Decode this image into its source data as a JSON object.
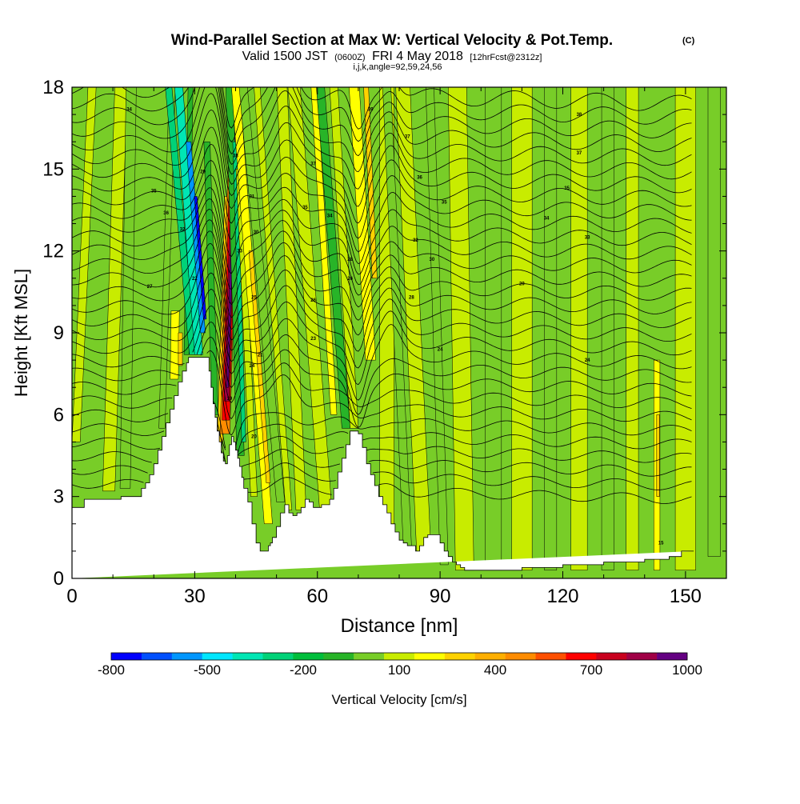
{
  "title": {
    "main": "Wind-Parallel Section at Max W: Vertical Velocity & Pot.Temp.",
    "main_unit": "(C)",
    "valid_prefix": "Valid 1500 JST",
    "valid_utc": "(0600Z)",
    "valid_date": "FRI 4 May 2018",
    "forecast": "[12hrFcst@2312z]",
    "indices": "i,j,k,angle=92,59,24,56"
  },
  "chart_data": {
    "type": "heatmap",
    "xlabel": "Distance [nm]",
    "ylabel": "Height [Kft MSL]",
    "xlim": [
      0,
      160
    ],
    "ylim": [
      0,
      18
    ],
    "x_ticks": [
      0,
      30,
      60,
      90,
      120,
      150
    ],
    "y_ticks": [
      0,
      3,
      6,
      9,
      12,
      15,
      18
    ],
    "grid": false,
    "fill_variable": "Vertical Velocity [cm/s]",
    "colorbar": {
      "label": "Vertical Velocity [cm/s]",
      "tick_labels": [
        "-800",
        "-500",
        "-200",
        "100",
        "400",
        "700",
        "1000"
      ],
      "tick_values": [
        -800,
        -500,
        -200,
        100,
        400,
        700,
        1000
      ],
      "min": -800,
      "max": 1000,
      "step": 100,
      "colors": [
        "#0000ff",
        "#0050ff",
        "#0096ff",
        "#00e6ff",
        "#00e6b4",
        "#00d278",
        "#00be3c",
        "#28b428",
        "#78cd28",
        "#c8ec00",
        "#ffff00",
        "#ffd200",
        "#ffaf00",
        "#ff8c00",
        "#ff5000",
        "#ff0000",
        "#c8001e",
        "#a00046",
        "#640082"
      ]
    },
    "background_color": "#78cd28",
    "terrain": {
      "x": [
        0,
        3,
        3,
        12,
        12,
        17,
        17,
        18,
        18,
        19,
        19,
        20,
        20,
        21,
        21,
        22,
        22,
        23,
        23,
        24,
        24,
        25,
        25,
        26,
        26,
        27,
        27,
        28,
        28,
        28.5,
        28.5,
        29,
        29,
        33.5,
        33.5,
        34,
        34,
        34.5,
        34.5,
        35,
        35,
        35.5,
        35.5,
        36,
        36,
        36.5,
        36.5,
        37,
        37,
        37.5,
        37.5,
        38,
        38,
        38.5,
        38.5,
        39,
        39,
        39.5,
        39.5,
        40,
        40,
        40.5,
        40.5,
        41,
        41,
        41.5,
        41.5,
        42,
        42,
        43,
        43,
        44,
        44,
        45,
        45,
        46,
        46,
        47,
        47,
        48,
        48,
        48.5,
        48.5,
        49,
        49,
        50,
        50,
        51,
        51,
        52,
        52,
        53,
        53,
        54,
        54,
        55,
        55,
        56,
        56,
        57,
        57,
        58,
        58,
        59,
        59,
        60,
        60,
        61,
        61,
        62,
        62,
        63,
        63,
        64,
        64,
        65,
        65,
        66,
        66,
        67,
        67,
        68,
        68,
        69,
        69,
        70,
        70,
        71,
        71,
        72,
        72,
        73,
        73,
        74,
        74,
        75,
        75,
        76,
        76,
        77,
        77,
        78,
        78,
        79,
        79,
        80,
        80,
        81,
        81,
        82,
        82,
        83,
        83,
        84,
        84,
        85,
        85,
        86,
        86,
        87,
        87,
        88,
        88,
        89,
        89,
        90,
        90,
        91,
        91,
        92,
        92,
        93,
        93,
        94,
        94,
        95,
        95,
        96,
        96,
        97,
        97,
        98,
        98,
        99,
        99,
        100,
        100,
        110,
        110,
        120,
        120,
        130,
        130,
        140,
        140,
        143,
        143,
        146,
        146,
        149,
        149,
        152,
        152,
        155,
        155,
        160,
        160
      ],
      "y": [
        2.6,
        2.6,
        2.9,
        2.9,
        3.0,
        3.0,
        3.3,
        3.3,
        3.5,
        3.5,
        3.8,
        3.8,
        4.2,
        4.2,
        4.7,
        4.7,
        5.2,
        5.2,
        5.7,
        5.7,
        6.2,
        6.2,
        6.7,
        6.7,
        7.2,
        7.2,
        7.6,
        7.6,
        7.9,
        7.9,
        8.1,
        8.1,
        8.1,
        8.1,
        7.6,
        7.6,
        7.0,
        7.0,
        6.4,
        6.4,
        5.9,
        5.9,
        5.4,
        5.4,
        5.0,
        5.0,
        4.6,
        4.6,
        4.3,
        4.3,
        4.2,
        4.2,
        4.5,
        4.5,
        4.9,
        4.9,
        5.2,
        5.2,
        5.0,
        5.0,
        4.7,
        4.7,
        4.4,
        4.4,
        4.1,
        4.1,
        3.7,
        3.7,
        3.3,
        3.3,
        2.8,
        2.8,
        2.0,
        2.0,
        1.3,
        1.3,
        1.0,
        1.0,
        1.0,
        1.0,
        1.2,
        1.2,
        1.3,
        1.3,
        1.5,
        1.5,
        1.9,
        1.9,
        2.4,
        2.4,
        2.7,
        2.7,
        2.4,
        2.4,
        2.3,
        2.3,
        2.4,
        2.4,
        2.6,
        2.6,
        2.9,
        2.9,
        2.8,
        2.8,
        2.6,
        2.6,
        2.6,
        2.6,
        2.7,
        2.7,
        2.7,
        2.7,
        2.9,
        2.9,
        3.3,
        3.3,
        3.9,
        3.9,
        4.4,
        4.4,
        4.9,
        4.9,
        5.4,
        5.4,
        5.4,
        5.4,
        5.3,
        5.3,
        4.8,
        4.8,
        4.2,
        4.2,
        3.8,
        3.8,
        3.4,
        3.4,
        3.0,
        3.0,
        2.7,
        2.7,
        2.4,
        2.4,
        2.0,
        2.0,
        1.7,
        1.7,
        1.4,
        1.4,
        1.3,
        1.3,
        1.2,
        1.2,
        1.2,
        1.2,
        1.0,
        1.0,
        1.2,
        1.2,
        1.5,
        1.5,
        1.6,
        1.6,
        1.6,
        1.6,
        1.6,
        1.6,
        1.3,
        1.3,
        1.0,
        1.0,
        0.8,
        0.8,
        0.6,
        0.6,
        0.5,
        0.5,
        0.4,
        0.4,
        0.3,
        0.3,
        0.3,
        0.3,
        0.3,
        0.3,
        0.3,
        0.3,
        0.3,
        0.3,
        0.4,
        0.4,
        0.5,
        0.5,
        0.6,
        0.6,
        0.7,
        0.7,
        0.7,
        0.7,
        0.8,
        0.8,
        1.0,
        1.0
      ]
    },
    "bands": [
      {
        "x": 1,
        "y1": 5.0,
        "y2": 18,
        "lean": 0.3,
        "w": 2.0,
        "value": 100
      },
      {
        "x": 9,
        "y1": 3.2,
        "y2": 18,
        "lean": 0.2,
        "w": 3.0,
        "value": 100
      },
      {
        "x": 13,
        "y1": 3.3,
        "y2": 18,
        "lean": 0.1,
        "w": 2.5,
        "value": 0
      },
      {
        "x": 22,
        "y1": 5.5,
        "y2": 18,
        "lean": 0.2,
        "w": 1.5,
        "value": 0
      },
      {
        "x": 25,
        "y1": 7.3,
        "y2": 9.8,
        "lean": 0.1,
        "w": 2.0,
        "value": 200
      },
      {
        "x": 26.5,
        "y1": 7.8,
        "y2": 9.0,
        "lean": 0.0,
        "w": 1.0,
        "value": 300
      },
      {
        "x": 28,
        "y1": 8.2,
        "y2": 18,
        "lean": 0.1,
        "w": 1.2,
        "value": -100
      },
      {
        "x": 29.5,
        "y1": 8.2,
        "y2": 18,
        "lean": -0.6,
        "w": 1.6,
        "value": -300
      },
      {
        "x": 31,
        "y1": 8.2,
        "y2": 18,
        "lean": -0.5,
        "w": 2.0,
        "value": -400
      },
      {
        "x": 32,
        "y1": 9.0,
        "y2": 16,
        "lean": -0.5,
        "w": 1.2,
        "value": -600
      },
      {
        "x": 32.5,
        "y1": 9.5,
        "y2": 14,
        "lean": -0.5,
        "w": 0.7,
        "value": -800
      },
      {
        "x": 35,
        "y1": 6.0,
        "y2": 16,
        "lean": -0.2,
        "w": 1.5,
        "value": -100
      },
      {
        "x": 36.2,
        "y1": 5.0,
        "y2": 14,
        "lean": 0.2,
        "w": 1.4,
        "value": 300
      },
      {
        "x": 37.4,
        "y1": 5.3,
        "y2": 18,
        "lean": 0.2,
        "w": 2.4,
        "value": 500
      },
      {
        "x": 37.6,
        "y1": 5.8,
        "y2": 18,
        "lean": 0.2,
        "w": 1.8,
        "value": 700
      },
      {
        "x": 37.8,
        "y1": 6.5,
        "y2": 18,
        "lean": 0.2,
        "w": 1.1,
        "value": 900
      },
      {
        "x": 38.0,
        "y1": 7.0,
        "y2": 17,
        "lean": 0.2,
        "w": 0.5,
        "value": 1000
      },
      {
        "x": 41.2,
        "y1": 4.5,
        "y2": 18,
        "lean": -0.2,
        "w": 1.8,
        "value": -100
      },
      {
        "x": 42,
        "y1": 5.0,
        "y2": 16,
        "lean": -0.2,
        "w": 1.0,
        "value": -300
      },
      {
        "x": 44.5,
        "y1": 3.0,
        "y2": 15,
        "lean": -0.3,
        "w": 1.6,
        "value": 100
      },
      {
        "x": 48,
        "y1": 2.0,
        "y2": 18,
        "lean": -0.5,
        "w": 2.0,
        "value": 200
      },
      {
        "x": 48,
        "y1": 3.5,
        "y2": 12,
        "lean": -0.5,
        "w": 1.0,
        "value": 300
      },
      {
        "x": 51,
        "y1": 2.8,
        "y2": 18,
        "lean": -0.6,
        "w": 2.0,
        "value": 0
      },
      {
        "x": 53,
        "y1": 2.5,
        "y2": 18,
        "lean": -0.5,
        "w": 1.5,
        "value": 100
      },
      {
        "x": 56,
        "y1": 2.5,
        "y2": 18,
        "lean": -0.3,
        "w": 2.5,
        "value": 100
      },
      {
        "x": 62,
        "y1": 2.6,
        "y2": 18,
        "lean": -0.5,
        "w": 3.0,
        "value": 100
      },
      {
        "x": 64,
        "y1": 6.0,
        "y2": 18,
        "lean": -0.4,
        "w": 1.5,
        "value": 200
      },
      {
        "x": 67,
        "y1": 5.5,
        "y2": 18,
        "lean": -0.5,
        "w": 2.0,
        "value": -100
      },
      {
        "x": 69,
        "y1": 5.5,
        "y2": 18,
        "lean": -0.4,
        "w": 2.0,
        "value": 100
      },
      {
        "x": 73,
        "y1": 8.0,
        "y2": 18,
        "lean": -0.4,
        "w": 2.5,
        "value": 200
      },
      {
        "x": 74,
        "y1": 11.0,
        "y2": 18,
        "lean": -0.3,
        "w": 1.2,
        "value": 300
      },
      {
        "x": 77,
        "y1": 1.5,
        "y2": 18,
        "lean": 0.0,
        "w": 3.5,
        "value": 100
      },
      {
        "x": 82,
        "y1": 1.2,
        "y2": 18,
        "lean": -0.3,
        "w": 2.0,
        "value": 0
      },
      {
        "x": 86,
        "y1": 1.0,
        "y2": 18,
        "lean": -0.3,
        "w": 3.5,
        "value": 100
      },
      {
        "x": 91,
        "y1": 0.5,
        "y2": 18,
        "lean": -0.2,
        "w": 2.0,
        "value": 0
      },
      {
        "x": 96,
        "y1": 0.3,
        "y2": 18,
        "lean": -0.1,
        "w": 4.5,
        "value": 100
      },
      {
        "x": 103,
        "y1": 0.3,
        "y2": 18,
        "lean": 0.0,
        "w": 4.0,
        "value": 0
      },
      {
        "x": 110,
        "y1": 0.3,
        "y2": 18,
        "lean": 0.0,
        "w": 5.0,
        "value": 100
      },
      {
        "x": 117,
        "y1": 0.3,
        "y2": 18,
        "lean": 0.0,
        "w": 3.0,
        "value": 0
      },
      {
        "x": 124,
        "y1": 0.3,
        "y2": 18,
        "lean": 0.0,
        "w": 4.0,
        "value": 100
      },
      {
        "x": 131,
        "y1": 0.3,
        "y2": 18,
        "lean": 0.0,
        "w": 3.0,
        "value": 0
      },
      {
        "x": 137,
        "y1": 0.3,
        "y2": 18,
        "lean": 0.0,
        "w": 3.0,
        "value": 100
      },
      {
        "x": 143,
        "y1": 0.3,
        "y2": 8.0,
        "lean": 0.0,
        "w": 1.5,
        "value": 200
      },
      {
        "x": 143.3,
        "y1": 3.0,
        "y2": 6.0,
        "lean": 0.0,
        "w": 0.7,
        "value": 300
      },
      {
        "x": 150,
        "y1": 0.3,
        "y2": 18,
        "lean": 0.0,
        "w": 5.0,
        "value": 100
      },
      {
        "x": 157,
        "y1": 0.8,
        "y2": 18,
        "lean": 0.0,
        "w": 3.0,
        "value": 0
      }
    ],
    "theta_contours": {
      "variable": "Potential Temperature [C]",
      "start_height": 3.5,
      "step": 0.5,
      "count": 30
    },
    "contour_labels": [
      {
        "x": 14,
        "y": 17.2,
        "text": "34"
      },
      {
        "x": 20,
        "y": 14.2,
        "text": "35"
      },
      {
        "x": 23,
        "y": 13.4,
        "text": "36"
      },
      {
        "x": 27,
        "y": 12.8,
        "text": "32"
      },
      {
        "x": 19,
        "y": 10.7,
        "text": "27"
      },
      {
        "x": 32,
        "y": 14.9,
        "text": "29"
      },
      {
        "x": 30,
        "y": 11.0,
        "text": "22"
      },
      {
        "x": 40,
        "y": 15.5,
        "text": "38"
      },
      {
        "x": 41,
        "y": 12.0,
        "text": "33"
      },
      {
        "x": 44,
        "y": 14.0,
        "text": "31"
      },
      {
        "x": 45,
        "y": 12.7,
        "text": "30"
      },
      {
        "x": 44.5,
        "y": 10.3,
        "text": "25"
      },
      {
        "x": 44,
        "y": 7.8,
        "text": "24"
      },
      {
        "x": 46,
        "y": 8.2,
        "text": "21"
      },
      {
        "x": 44.5,
        "y": 5.2,
        "text": "20"
      },
      {
        "x": 38.5,
        "y": 6.6,
        "text": "19"
      },
      {
        "x": 59,
        "y": 15.2,
        "text": "37"
      },
      {
        "x": 57,
        "y": 13.6,
        "text": "35"
      },
      {
        "x": 63,
        "y": 13.3,
        "text": "34"
      },
      {
        "x": 59,
        "y": 10.2,
        "text": "26"
      },
      {
        "x": 59,
        "y": 8.8,
        "text": "23"
      },
      {
        "x": 68,
        "y": 11.7,
        "text": "28"
      },
      {
        "x": 68,
        "y": 11.0,
        "text": "26"
      },
      {
        "x": 73,
        "y": 17.2,
        "text": "39"
      },
      {
        "x": 82,
        "y": 16.2,
        "text": "37"
      },
      {
        "x": 85,
        "y": 14.7,
        "text": "36"
      },
      {
        "x": 91,
        "y": 13.8,
        "text": "35"
      },
      {
        "x": 84,
        "y": 12.4,
        "text": "32"
      },
      {
        "x": 88,
        "y": 11.7,
        "text": "30"
      },
      {
        "x": 83,
        "y": 10.3,
        "text": "28"
      },
      {
        "x": 90,
        "y": 8.4,
        "text": "24"
      },
      {
        "x": 124,
        "y": 17.0,
        "text": "38"
      },
      {
        "x": 124,
        "y": 15.6,
        "text": "37"
      },
      {
        "x": 121,
        "y": 14.3,
        "text": "35"
      },
      {
        "x": 116,
        "y": 13.2,
        "text": "34"
      },
      {
        "x": 126,
        "y": 12.5,
        "text": "33"
      },
      {
        "x": 110,
        "y": 10.8,
        "text": "29"
      },
      {
        "x": 126,
        "y": 8.0,
        "text": "24"
      },
      {
        "x": 144,
        "y": 1.3,
        "text": "15"
      }
    ]
  }
}
